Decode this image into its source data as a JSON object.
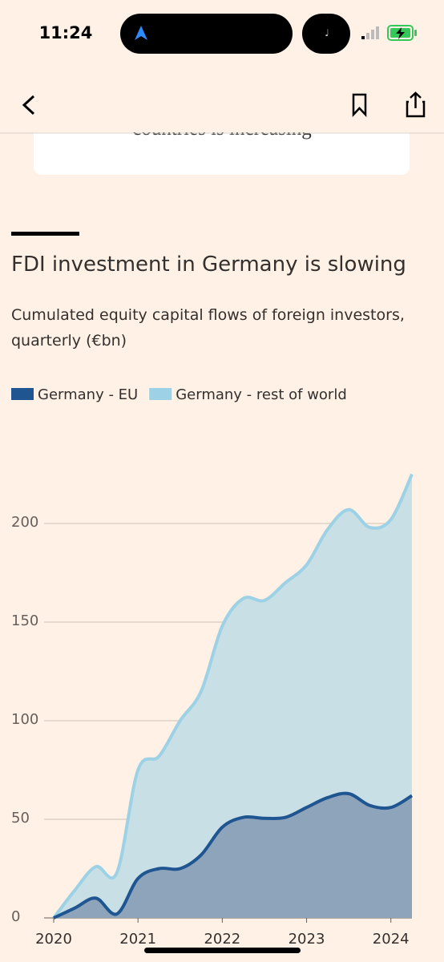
{
  "status_bar": {
    "time": "11:24"
  },
  "card_text": "countries is increasing",
  "chart_data": {
    "type": "area",
    "title": "FDI investment in Germany is slowing",
    "subtitle": "Cumulated equity capital flows of foreign investors, quarterly (€bn)",
    "x": [
      2020,
      2020.25,
      2020.5,
      2020.75,
      2021,
      2021.25,
      2021.5,
      2021.75,
      2022,
      2022.25,
      2022.5,
      2022.75,
      2023,
      2023.25,
      2023.5,
      2023.75,
      2024,
      2024.25
    ],
    "series": [
      {
        "name": "Germany - rest of world",
        "color": "#9dd2e6",
        "fill": "#c8dfe5",
        "values": [
          0,
          14,
          26,
          23,
          75,
          82,
          100,
          115,
          148,
          162,
          161,
          170,
          179,
          197,
          207,
          198,
          202,
          225
        ]
      },
      {
        "name": "Germany - EU",
        "color": "#1f5591",
        "fill": "#8ea4bb",
        "values": [
          0,
          5,
          10,
          2,
          20,
          25,
          25,
          32,
          46,
          51,
          50.5,
          51,
          56,
          61,
          63,
          57,
          56,
          62
        ]
      }
    ],
    "legend_order": [
      1,
      0
    ],
    "xlim": [
      2020,
      2024.25
    ],
    "xticks": [
      2020,
      2021,
      2022,
      2023,
      2024
    ],
    "ylim": [
      0,
      225
    ],
    "yticks": [
      0,
      50,
      100,
      150,
      200
    ],
    "grid": true
  }
}
